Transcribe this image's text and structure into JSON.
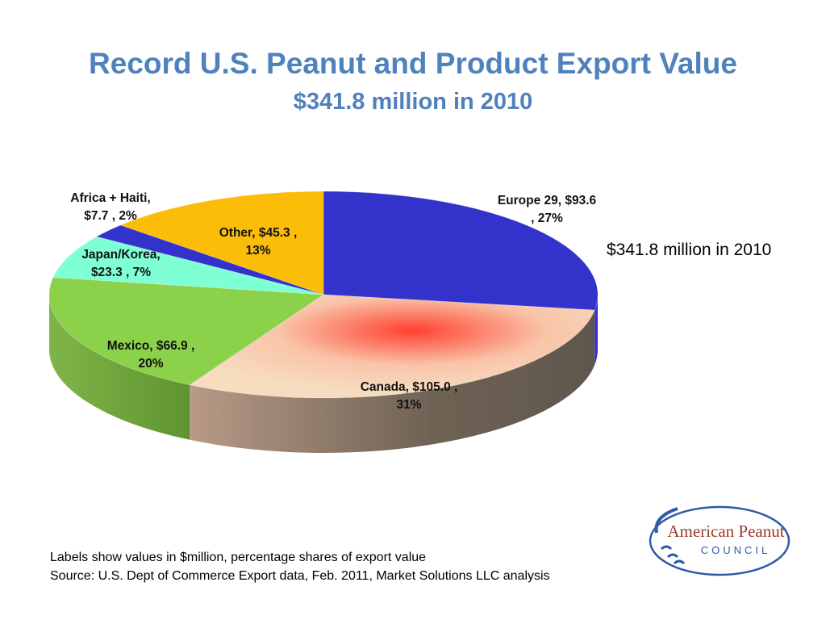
{
  "title": "Record U.S. Peanut and Product Export Value",
  "subtitle": "$341.8 million in 2010",
  "side_note": "$341.8 million in 2010",
  "footnote_1": "Labels show values in $million, percentage shares of export value",
  "footnote_2": "Source: U.S. Dept of Commerce Export data, Feb. 2011,  Market Solutions LLC analysis",
  "logo": {
    "line1": "American Peanut",
    "line2": "COUNCIL"
  },
  "chart_data": {
    "type": "pie",
    "title": "Record U.S. Peanut and Product Export Value",
    "subtitle": "$341.8 million in 2010",
    "unit": "$million",
    "total": 341.8,
    "slices": [
      {
        "name": "Europe 29",
        "value": 93.6,
        "percent": 27,
        "color": "#3333cc",
        "label_lines": [
          "Europe 29,  $93.6",
          ", 27%"
        ]
      },
      {
        "name": "Canada",
        "value": 105.0,
        "percent": 31,
        "color": "#f7d8b8",
        "label_lines": [
          "Canada,  $105.0 ,",
          "31%"
        ]
      },
      {
        "name": "Mexico",
        "value": 66.9,
        "percent": 20,
        "color": "#8cd14a",
        "label_lines": [
          "Mexico,  $66.9 ,",
          "20%"
        ]
      },
      {
        "name": "Japan/Korea",
        "value": 23.3,
        "percent": 7,
        "color": "#7fffd4",
        "label_lines": [
          "Japan/Korea,",
          "$23.3 , 7%"
        ]
      },
      {
        "name": "Africa + Haiti",
        "value": 7.7,
        "percent": 2,
        "color": "#3333cc",
        "label_lines": [
          "Africa + Haiti,",
          "$7.7 , 2%"
        ]
      },
      {
        "name": "Other",
        "value": 45.3,
        "percent": 13,
        "color": "#fbbd08",
        "label_lines": [
          "Other,  $45.3 ,",
          "13%"
        ]
      }
    ],
    "legend": "none"
  }
}
